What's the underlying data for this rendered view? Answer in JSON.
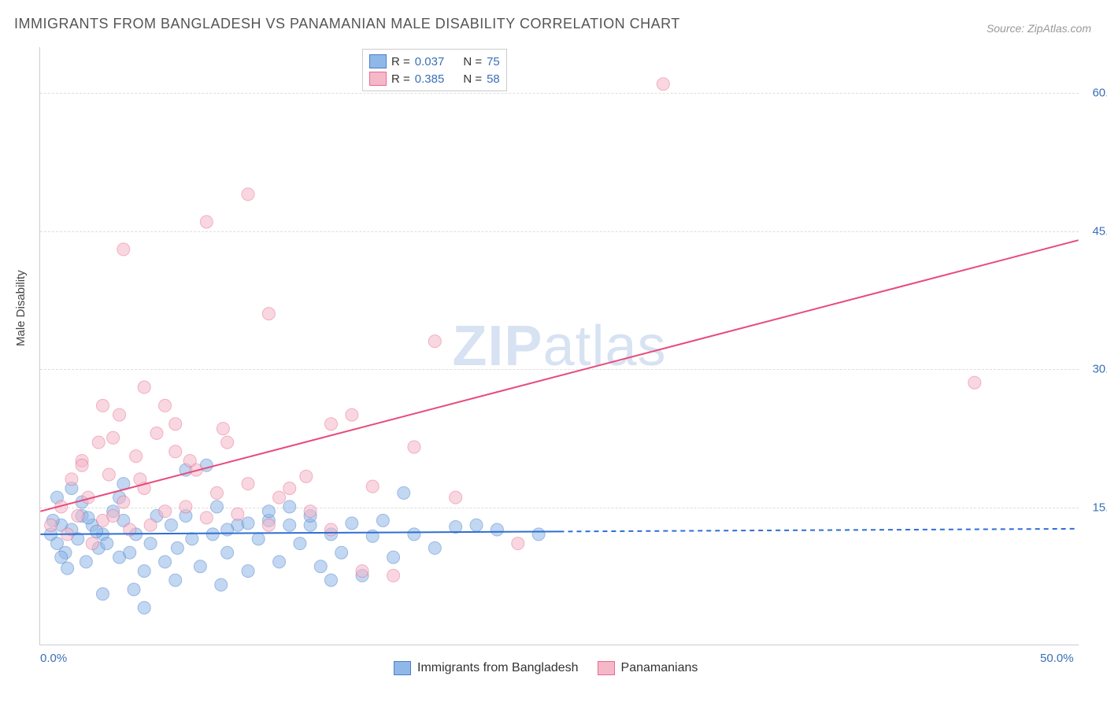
{
  "title": "IMMIGRANTS FROM BANGLADESH VS PANAMANIAN MALE DISABILITY CORRELATION CHART",
  "source": "Source: ZipAtlas.com",
  "watermark": {
    "part1": "ZIP",
    "part2": "atlas"
  },
  "y_axis_label": "Male Disability",
  "chart": {
    "type": "scatter",
    "xlim": [
      0,
      50
    ],
    "ylim": [
      0,
      65
    ],
    "x_ticks": [
      {
        "value": 0,
        "label": "0.0%"
      },
      {
        "value": 50,
        "label": "50.0%"
      }
    ],
    "y_ticks": [
      {
        "value": 15,
        "label": "15.0%"
      },
      {
        "value": 30,
        "label": "30.0%"
      },
      {
        "value": 45,
        "label": "45.0%"
      },
      {
        "value": 60,
        "label": "60.0%"
      }
    ],
    "grid_color": "#dddddd",
    "background_color": "#ffffff",
    "point_radius": 8,
    "point_opacity": 0.55,
    "series": [
      {
        "name": "Immigrants from Bangladesh",
        "fill_color": "#8fb8e8",
        "stroke_color": "#4a7fc9",
        "R": "0.037",
        "N": "75",
        "trend": {
          "solid": {
            "x1": 0,
            "y1": 12,
            "x2": 25,
            "y2": 12.3
          },
          "dashed": {
            "x1": 25,
            "y1": 12.3,
            "x2": 50,
            "y2": 12.6
          },
          "color": "#2e6fd1",
          "width": 2
        },
        "points": [
          [
            0.5,
            12
          ],
          [
            0.8,
            11
          ],
          [
            1,
            13
          ],
          [
            1.2,
            10
          ],
          [
            1.5,
            12.5
          ],
          [
            1.8,
            11.5
          ],
          [
            2,
            14
          ],
          [
            2.2,
            9
          ],
          [
            2.5,
            13
          ],
          [
            2.8,
            10.5
          ],
          [
            3,
            12
          ],
          [
            3.2,
            11
          ],
          [
            3.5,
            14.5
          ],
          [
            3.8,
            9.5
          ],
          [
            4,
            13.5
          ],
          [
            4.3,
            10
          ],
          [
            4.6,
            12
          ],
          [
            5,
            8
          ],
          [
            5.3,
            11
          ],
          [
            5.6,
            14
          ],
          [
            6,
            9
          ],
          [
            6.3,
            13
          ],
          [
            6.6,
            10.5
          ],
          [
            7,
            19
          ],
          [
            7.3,
            11.5
          ],
          [
            7.7,
            8.5
          ],
          [
            8,
            19.5
          ],
          [
            8.3,
            12
          ],
          [
            8.7,
            6.5
          ],
          [
            9,
            10
          ],
          [
            9.5,
            13
          ],
          [
            10,
            8
          ],
          [
            10.5,
            11.5
          ],
          [
            11,
            13.5
          ],
          [
            11.5,
            9
          ],
          [
            12,
            15
          ],
          [
            12.5,
            11
          ],
          [
            13,
            13
          ],
          [
            13.5,
            8.5
          ],
          [
            14,
            12
          ],
          [
            14.5,
            10
          ],
          [
            15,
            13.2
          ],
          [
            15.5,
            7.5
          ],
          [
            16,
            11.8
          ],
          [
            16.5,
            13.5
          ],
          [
            17,
            9.5
          ],
          [
            17.5,
            16.5
          ],
          [
            18,
            12
          ],
          [
            19,
            10.5
          ],
          [
            20,
            12.8
          ],
          [
            21,
            13
          ],
          [
            22,
            12.5
          ],
          [
            24,
            12
          ],
          [
            14,
            7
          ],
          [
            10,
            13.2
          ],
          [
            12,
            13
          ],
          [
            3,
            5.5
          ],
          [
            5,
            4
          ],
          [
            6.5,
            7
          ],
          [
            4.5,
            6
          ],
          [
            2,
            15.5
          ],
          [
            3.8,
            16
          ],
          [
            1.5,
            17
          ],
          [
            0.8,
            16
          ],
          [
            4,
            17.5
          ],
          [
            8.5,
            15
          ],
          [
            11,
            14.5
          ],
          [
            13,
            14
          ],
          [
            9,
            12.5
          ],
          [
            7,
            14
          ],
          [
            2.3,
            13.8
          ],
          [
            1,
            9.5
          ],
          [
            0.6,
            13.5
          ],
          [
            1.3,
            8.3
          ],
          [
            2.7,
            12.3
          ]
        ]
      },
      {
        "name": "Panamanians",
        "fill_color": "#f5b8c9",
        "stroke_color": "#e76b8f",
        "R": "0.385",
        "N": "58",
        "trend": {
          "solid": {
            "x1": 0,
            "y1": 14.5,
            "x2": 50,
            "y2": 44
          },
          "dashed": null,
          "color": "#e84a7a",
          "width": 2
        },
        "points": [
          [
            0.5,
            13
          ],
          [
            1,
            15
          ],
          [
            1.3,
            12
          ],
          [
            1.5,
            18
          ],
          [
            1.8,
            14
          ],
          [
            2,
            20
          ],
          [
            2.3,
            16
          ],
          [
            2.5,
            11
          ],
          [
            2.8,
            22
          ],
          [
            3,
            13.5
          ],
          [
            3.3,
            18.5
          ],
          [
            3.5,
            14
          ],
          [
            3.8,
            25
          ],
          [
            4,
            15.5
          ],
          [
            4.3,
            12.5
          ],
          [
            4.6,
            20.5
          ],
          [
            5,
            17
          ],
          [
            5.3,
            13
          ],
          [
            5.6,
            23
          ],
          [
            6,
            14.5
          ],
          [
            6.5,
            21
          ],
          [
            7,
            15
          ],
          [
            7.5,
            19
          ],
          [
            8,
            13.8
          ],
          [
            8.5,
            16.5
          ],
          [
            9,
            22
          ],
          [
            9.5,
            14.2
          ],
          [
            10,
            17.5
          ],
          [
            14,
            24
          ],
          [
            11,
            13
          ],
          [
            12,
            17
          ],
          [
            13,
            14.5
          ],
          [
            14,
            12.5
          ],
          [
            15,
            25
          ],
          [
            16,
            17.2
          ],
          [
            18,
            21.5
          ],
          [
            19,
            33
          ],
          [
            20,
            16
          ],
          [
            23,
            11
          ],
          [
            15.5,
            8
          ],
          [
            17,
            7.5
          ],
          [
            4,
            43
          ],
          [
            8,
            46
          ],
          [
            10,
            49
          ],
          [
            11,
            36
          ],
          [
            30,
            61
          ],
          [
            3,
            26
          ],
          [
            5,
            28
          ],
          [
            6.5,
            24
          ],
          [
            45,
            28.5
          ],
          [
            2,
            19.5
          ],
          [
            3.5,
            22.5
          ],
          [
            4.8,
            18
          ],
          [
            6,
            26
          ],
          [
            7.2,
            20
          ],
          [
            8.8,
            23.5
          ],
          [
            11.5,
            16
          ],
          [
            12.8,
            18.3
          ]
        ]
      }
    ]
  },
  "legend_top": {
    "rows": [
      {
        "swatch_fill": "#8fb8e8",
        "swatch_stroke": "#4a7fc9",
        "R_label": "R =",
        "R_value": "0.037",
        "N_label": "N =",
        "N_value": "75"
      },
      {
        "swatch_fill": "#f5b8c9",
        "swatch_stroke": "#e76b8f",
        "R_label": "R =",
        "R_value": "0.385",
        "N_label": "N =",
        "N_value": "58"
      }
    ]
  },
  "legend_bottom": {
    "items": [
      {
        "swatch_fill": "#8fb8e8",
        "swatch_stroke": "#4a7fc9",
        "label": "Immigrants from Bangladesh"
      },
      {
        "swatch_fill": "#f5b8c9",
        "swatch_stroke": "#e76b8f",
        "label": "Panamanians"
      }
    ]
  }
}
